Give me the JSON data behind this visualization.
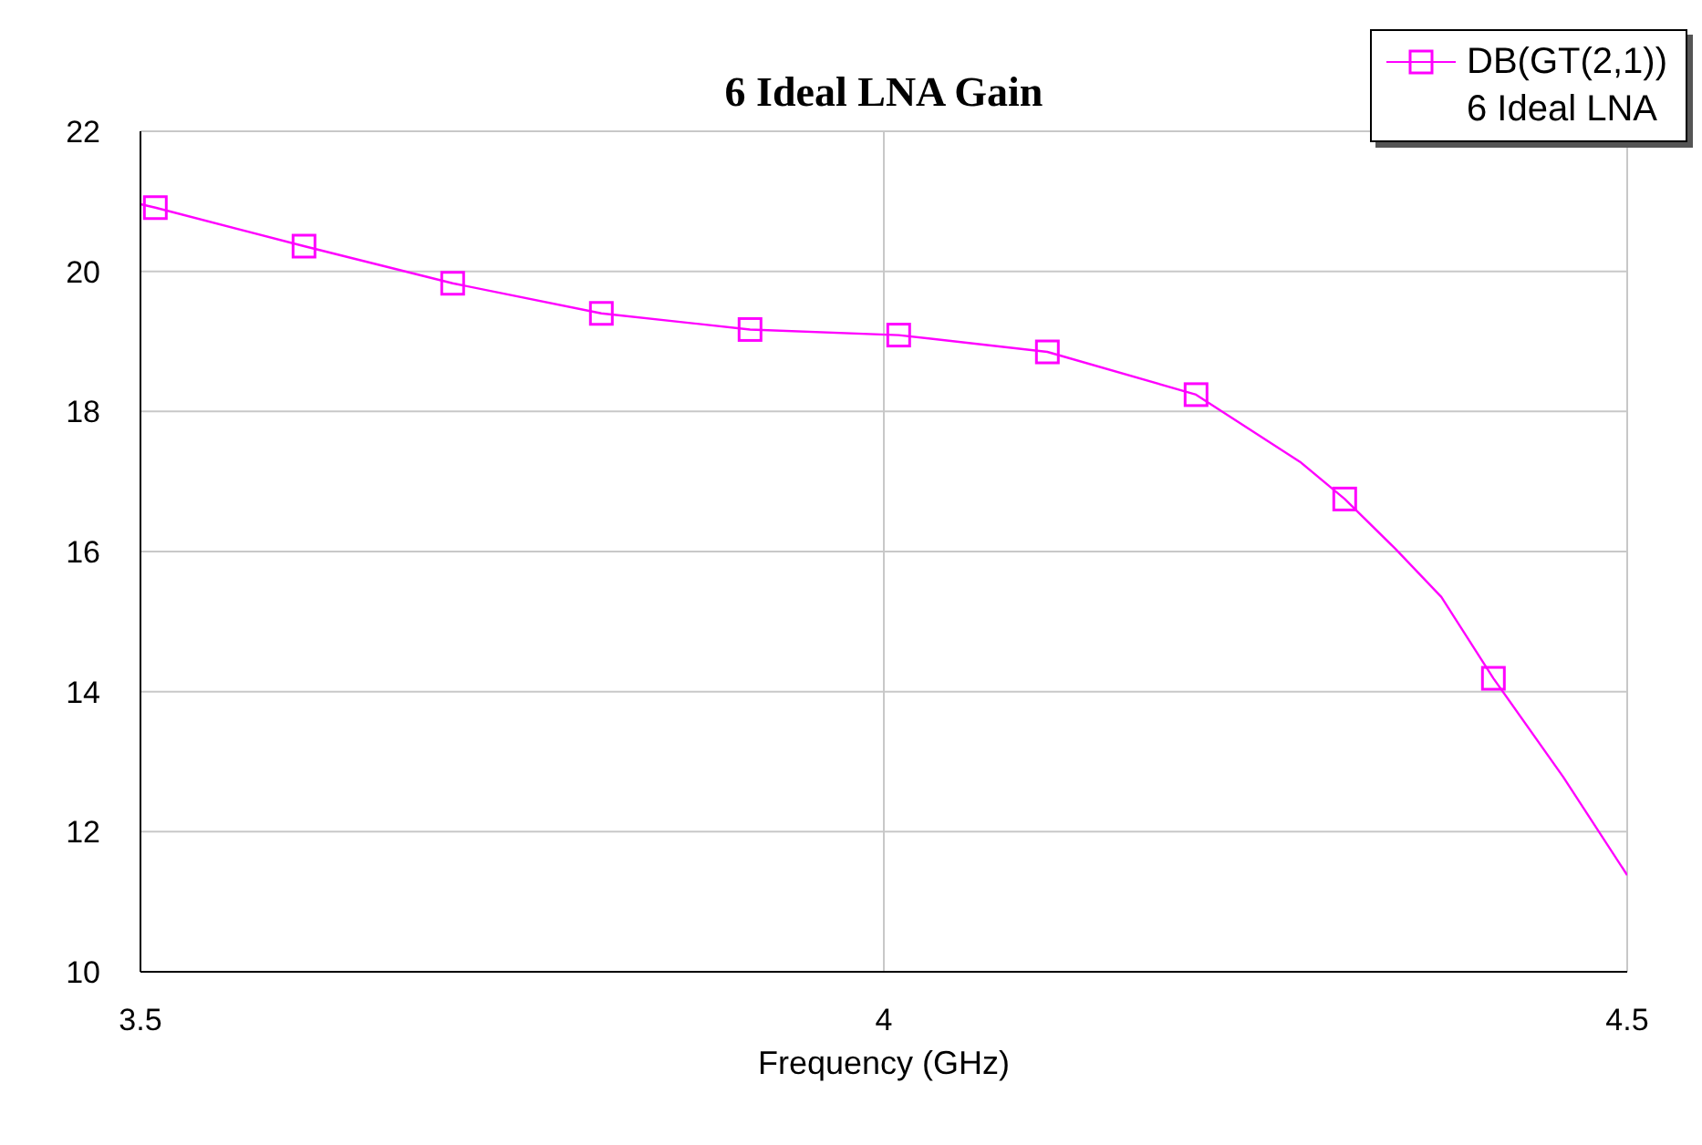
{
  "chart_data": {
    "type": "line",
    "title": "6 Ideal LNA Gain",
    "xlabel": "Frequency (GHz)",
    "legend_title": "6 Ideal LNA",
    "xlim": [
      3.5,
      4.5
    ],
    "xticks": [
      3.5,
      4,
      4.5
    ],
    "ylim": [
      10,
      22
    ],
    "yticks": [
      10,
      12,
      14,
      16,
      18,
      20,
      22
    ],
    "grid": true,
    "legend": "top right",
    "series": [
      {
        "color": "#ff00ff",
        "marker": "none",
        "x": [
          3.5,
          3.51,
          3.61,
          3.71,
          3.81,
          3.91,
          4.01,
          4.11,
          4.21,
          4.28,
          4.31,
          4.344,
          4.375,
          4.41,
          4.457,
          4.5
        ],
        "values": [
          20.96,
          20.91,
          20.36,
          19.83,
          19.4,
          19.17,
          19.09,
          18.85,
          18.24,
          17.28,
          16.75,
          16.04,
          15.35,
          14.19,
          12.78,
          11.38
        ]
      },
      {
        "type": "scatter",
        "name": "DB(GT(2,1))",
        "color": "#ff00ff",
        "marker": "square",
        "x": [
          3.51,
          3.61,
          3.71,
          3.81,
          3.91,
          4.01,
          4.11,
          4.21,
          4.31,
          4.41
        ],
        "values": [
          20.91,
          20.36,
          19.83,
          19.4,
          19.17,
          19.09,
          18.85,
          18.24,
          16.75,
          14.19
        ]
      }
    ]
  }
}
